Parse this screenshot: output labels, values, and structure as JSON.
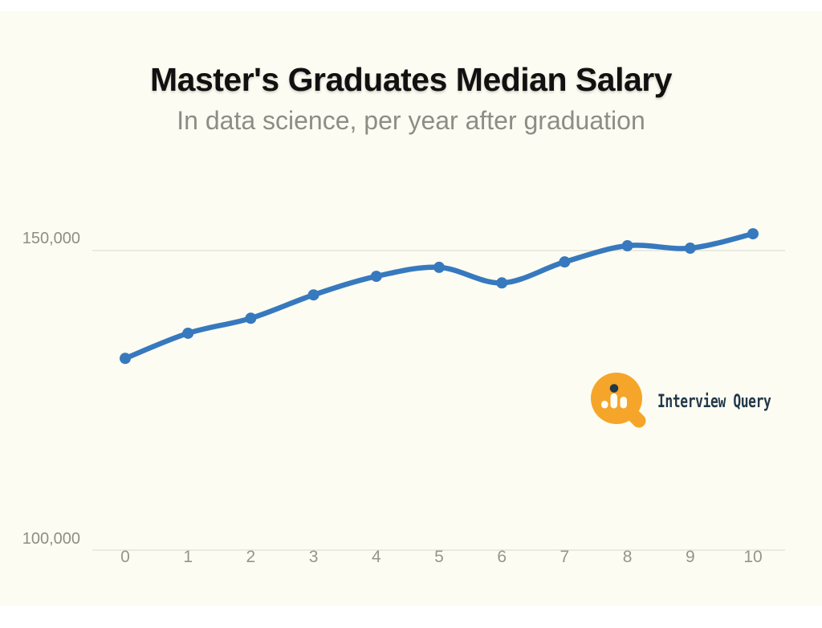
{
  "page": {
    "background": "#ffffff",
    "canvas_background": "#fcfcf2"
  },
  "header": {
    "title": "Master's Graduates Median Salary",
    "subtitle": "In data science, per year after graduation",
    "title_color": "#111111",
    "subtitle_color": "#8d8d88"
  },
  "chart_data": {
    "type": "line",
    "title": "Master's Graduates Median Salary",
    "subtitle": "In data science, per year after graduation",
    "x": [
      0,
      1,
      2,
      3,
      4,
      5,
      6,
      7,
      8,
      9,
      10
    ],
    "x_tick_labels": [
      "0",
      "1",
      "2",
      "3",
      "4",
      "5",
      "6",
      "7",
      "8",
      "9",
      "10"
    ],
    "values": [
      132000,
      136200,
      138700,
      142600,
      145700,
      147200,
      144600,
      148100,
      150800,
      150400,
      152800
    ],
    "xlabel": "",
    "ylabel": "",
    "xlim": [
      0,
      10
    ],
    "ylim": [
      100000,
      155000
    ],
    "y_ticks": [
      100000,
      150000
    ],
    "y_tick_labels": [
      "100,000",
      "150,000"
    ],
    "grid": "horizontal gridlines at y-ticks only",
    "legend": "none",
    "line_color": "#3779be",
    "marker": "filled-circle",
    "gridline_color": "#e5e4db",
    "tick_label_color": "#96958d"
  },
  "logo": {
    "wordmark": "Interview Query",
    "orange": "#f5a529",
    "dark": "#22384a"
  }
}
